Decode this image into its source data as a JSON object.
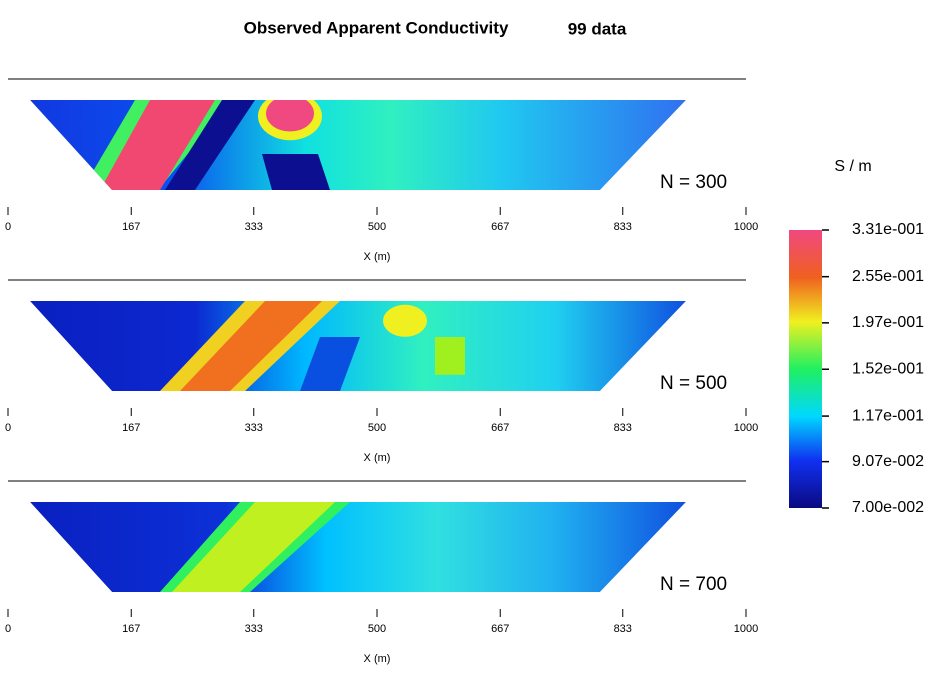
{
  "title": "Observed Apparent Conductivity",
  "subtitle": "99 data",
  "chart_data": [
    {
      "type": "pseudosection",
      "label": "N = 300",
      "x_label": "X (m)",
      "xlim": [
        0,
        1000
      ],
      "xticks": [
        0,
        167,
        333,
        500,
        667,
        833,
        1000
      ]
    },
    {
      "type": "pseudosection",
      "label": "N = 500",
      "x_label": "X (m)",
      "xlim": [
        0,
        1000
      ],
      "xticks": [
        0,
        167,
        333,
        500,
        667,
        833,
        1000
      ]
    },
    {
      "type": "pseudosection",
      "label": "N = 700",
      "x_label": "X (m)",
      "xlim": [
        0,
        1000
      ],
      "xticks": [
        0,
        167,
        333,
        500,
        667,
        833,
        1000
      ]
    }
  ],
  "colorbar": {
    "title": "S / m",
    "log": true,
    "lim": [
      0.07,
      0.331
    ],
    "ticks": [
      {
        "value": 0.331,
        "label": "3.31e-001"
      },
      {
        "value": 0.255,
        "label": "2.55e-001"
      },
      {
        "value": 0.197,
        "label": "1.97e-001"
      },
      {
        "value": 0.152,
        "label": "1.52e-001"
      },
      {
        "value": 0.117,
        "label": "1.17e-001"
      },
      {
        "value": 0.0907,
        "label": "9.07e-002"
      },
      {
        "value": 0.07,
        "label": "7.00e-002"
      }
    ]
  }
}
